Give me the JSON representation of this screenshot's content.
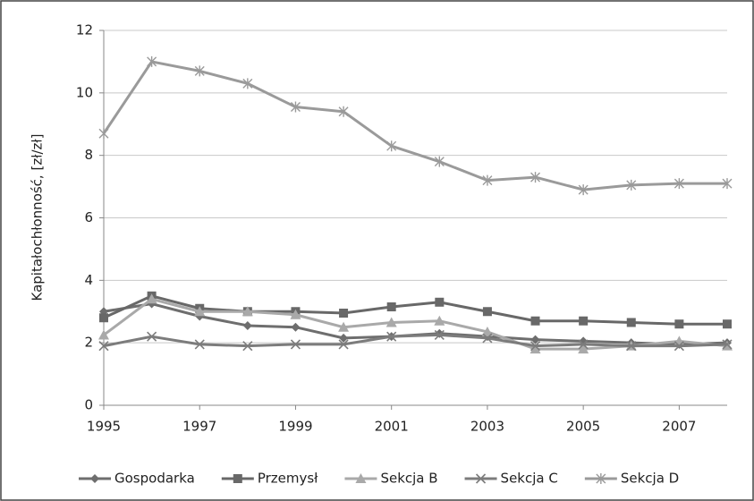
{
  "chart_data": {
    "type": "line",
    "y_label": "Kapitałochłonność, [zł/zł]",
    "x": [
      1995,
      1996,
      1997,
      1998,
      1999,
      2000,
      2001,
      2002,
      2003,
      2004,
      2005,
      2006,
      2007,
      2008
    ],
    "xlim": [
      1995,
      2008
    ],
    "xticks": [
      1995,
      1997,
      1999,
      2001,
      2003,
      2005,
      2007
    ],
    "ylim": [
      0,
      12
    ],
    "yticks": [
      0,
      2,
      4,
      6,
      8,
      10,
      12
    ],
    "grid": true,
    "legend": "bottom",
    "series": [
      {
        "name": "Gospodarka",
        "color": "#6e6e6e",
        "marker": "diamond",
        "values": [
          3.0,
          3.25,
          2.85,
          2.55,
          2.5,
          2.15,
          2.2,
          2.3,
          2.2,
          2.1,
          2.05,
          2.0,
          1.95,
          2.0
        ]
      },
      {
        "name": "Przemysł",
        "color": "#686868",
        "marker": "square",
        "values": [
          2.8,
          3.5,
          3.1,
          3.0,
          3.0,
          2.95,
          3.15,
          3.3,
          3.0,
          2.7,
          2.7,
          2.65,
          2.6,
          2.6
        ]
      },
      {
        "name": "Sekcja B",
        "color": "#a9a9a9",
        "marker": "triangle",
        "values": [
          2.25,
          3.4,
          3.0,
          3.0,
          2.9,
          2.5,
          2.65,
          2.7,
          2.35,
          1.8,
          1.8,
          1.9,
          2.05,
          1.9
        ]
      },
      {
        "name": "Sekcja C",
        "color": "#7c7c7c",
        "marker": "x",
        "values": [
          1.9,
          2.2,
          1.95,
          1.9,
          1.95,
          1.95,
          2.2,
          2.25,
          2.15,
          1.9,
          1.95,
          1.9,
          1.9,
          1.95
        ]
      },
      {
        "name": "Sekcja D",
        "color": "#9a9a9a",
        "marker": "star",
        "values": [
          8.7,
          11.0,
          10.7,
          10.3,
          9.55,
          9.4,
          8.3,
          7.8,
          7.2,
          7.3,
          6.9,
          7.05,
          7.1,
          7.1
        ]
      }
    ]
  }
}
